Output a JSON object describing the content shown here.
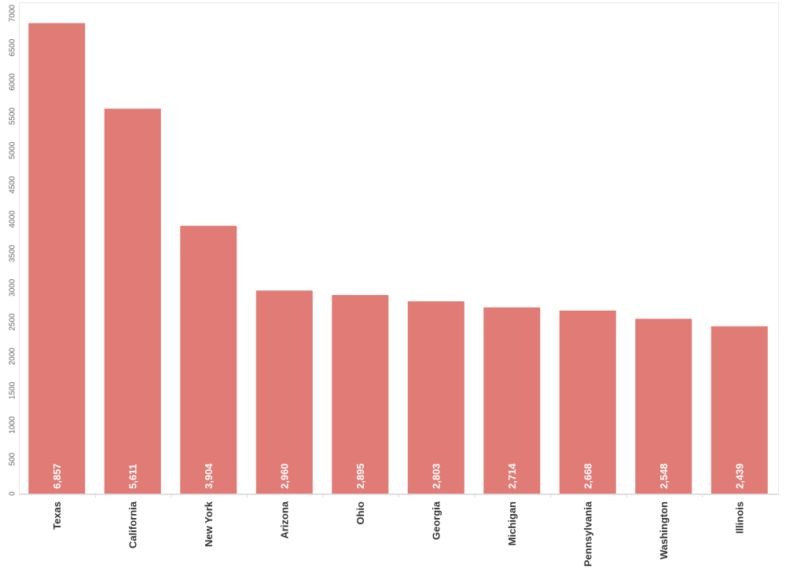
{
  "chart_data": {
    "type": "bar",
    "title": "",
    "xlabel": "",
    "ylabel": "",
    "categories": [
      "Texas",
      "California",
      "New York",
      "Arizona",
      "Ohio",
      "Georgia",
      "Michigan",
      "Pennsylvania",
      "Washington",
      "Illinois"
    ],
    "values": [
      6857,
      5611,
      3904,
      2960,
      2895,
      2803,
      2714,
      2668,
      2548,
      2439
    ],
    "value_labels": [
      "6,857",
      "5,611",
      "3,904",
      "2,960",
      "2,895",
      "2,803",
      "2,714",
      "2,668",
      "2,548",
      "2,439"
    ],
    "ylim": [
      0,
      7000
    ],
    "y_ticks": [
      0,
      500,
      1000,
      1500,
      2000,
      2500,
      3000,
      3500,
      4000,
      4500,
      5000,
      5500,
      6000,
      6500,
      7000
    ],
    "grid": false,
    "legend": "none",
    "bar_color": "#e07b76",
    "label_color": "#ffffff"
  }
}
